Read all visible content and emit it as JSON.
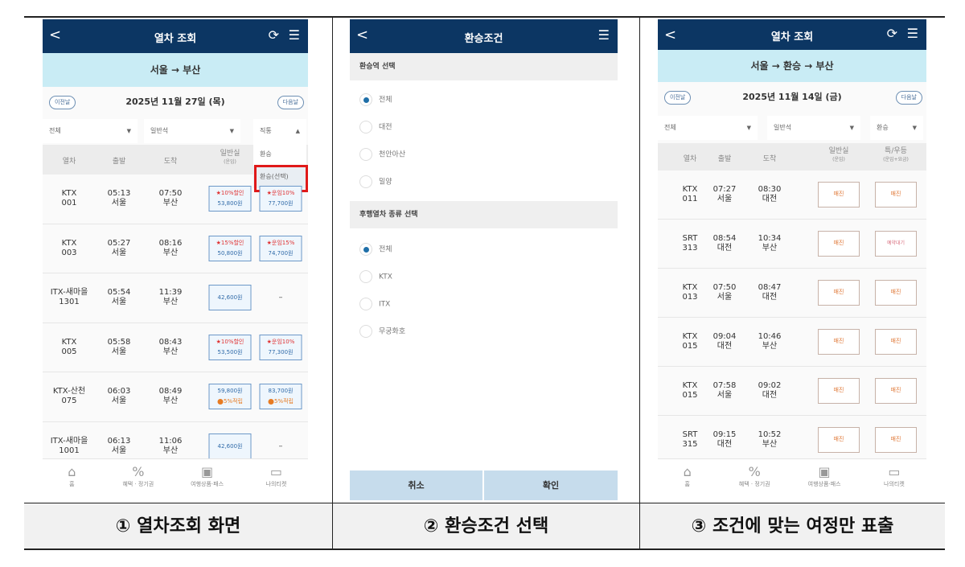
{
  "captions": [
    "① 열차조회 화면",
    "② 환승조건 선택",
    "③ 조건에 맞는 여정만 표출"
  ],
  "colors": {
    "header": "#0c3663",
    "route_bar": "#c9ecf5",
    "highlight": "#e01919",
    "sold_out": "#e07a3a"
  },
  "columns": {
    "train": "열차",
    "dep": "출발",
    "arr": "도착",
    "general": "일반실",
    "general_sub": "(운임)",
    "special": "특/우등",
    "special_sub": "(운임+요금)"
  },
  "nav": [
    {
      "label": "홈",
      "icon": "home-icon"
    },
    {
      "label": "혜택 · 정기권",
      "icon": "discount-icon"
    },
    {
      "label": "여행상품·패스",
      "icon": "luggage-icon"
    },
    {
      "label": "나의티켓",
      "icon": "ticket-icon"
    }
  ],
  "screen1": {
    "title": "열차 조회",
    "route": "서울 → 부산",
    "prev": "이전날",
    "next": "다음날",
    "date": "2025년 11월 27일 (목)",
    "filters": [
      "전체",
      "일반석",
      "직통"
    ],
    "dropdown": [
      "환승",
      "환승(선택)"
    ],
    "rows": [
      {
        "train": "KTX",
        "no": "001",
        "dep": "05:13",
        "dep_st": "서울",
        "arr": "07:50",
        "arr_st": "부산",
        "g": {
          "disc": "★10%할인",
          "price": "53,800원"
        },
        "s": {
          "disc": "★운임10%",
          "price": "77,700원"
        }
      },
      {
        "train": "KTX",
        "no": "003",
        "dep": "05:27",
        "dep_st": "서울",
        "arr": "08:16",
        "arr_st": "부산",
        "g": {
          "disc": "★15%할인",
          "price": "50,800원"
        },
        "s": {
          "disc": "★운임15%",
          "price": "74,700원"
        }
      },
      {
        "train": "ITX-새마을",
        "no": "1301",
        "dep": "05:54",
        "dep_st": "서울",
        "arr": "11:39",
        "arr_st": "부산",
        "g": {
          "price": "42,600원"
        },
        "s": null,
        "none": "–"
      },
      {
        "train": "KTX",
        "no": "005",
        "dep": "05:58",
        "dep_st": "서울",
        "arr": "08:43",
        "arr_st": "부산",
        "g": {
          "disc": "★10%할인",
          "price": "53,500원"
        },
        "s": {
          "disc": "★운임10%",
          "price": "77,300원"
        }
      },
      {
        "train": "KTX-산천",
        "no": "075",
        "dep": "06:03",
        "dep_st": "서울",
        "arr": "08:49",
        "arr_st": "부산",
        "g": {
          "price": "59,800원",
          "point": "5%적립"
        },
        "s": {
          "price": "83,700원",
          "point": "5%적립"
        }
      },
      {
        "train": "ITX-새마을",
        "no": "1001",
        "dep": "06:13",
        "dep_st": "서울",
        "arr": "11:06",
        "arr_st": "부산",
        "g": {
          "price": "42,600원"
        },
        "s": null,
        "none": "–"
      }
    ]
  },
  "screen2": {
    "title": "환승조건",
    "section1": "환승역 선택",
    "stations": [
      {
        "label": "전체",
        "checked": true
      },
      {
        "label": "대전",
        "checked": false
      },
      {
        "label": "천안아산",
        "checked": false
      },
      {
        "label": "밀양",
        "checked": false
      }
    ],
    "section2": "후행열차 종류 선택",
    "types": [
      {
        "label": "전체",
        "checked": true
      },
      {
        "label": "KTX",
        "checked": false
      },
      {
        "label": "ITX",
        "checked": false
      },
      {
        "label": "무궁화호",
        "checked": false
      }
    ],
    "cancel": "취소",
    "confirm": "확인"
  },
  "screen3": {
    "title": "열차 조회",
    "route": "서울 → 환승 → 부산",
    "prev": "이전날",
    "next": "다음날",
    "date": "2025년 11월 14일 (금)",
    "filters": [
      "전체",
      "일반석",
      "환승"
    ],
    "rows": [
      {
        "train": "KTX",
        "no": "011",
        "dep": "07:27",
        "dep_st": "서울",
        "arr": "08:30",
        "arr_st": "대전",
        "g": "매진",
        "s": "매진"
      },
      {
        "train": "SRT",
        "no": "313",
        "dep": "08:54",
        "dep_st": "대전",
        "arr": "10:34",
        "arr_st": "부산",
        "g": "매진",
        "s": "예약대기"
      },
      {
        "train": "KTX",
        "no": "013",
        "dep": "07:50",
        "dep_st": "서울",
        "arr": "08:47",
        "arr_st": "대전",
        "g": "매진",
        "s": "매진"
      },
      {
        "train": "KTX",
        "no": "015",
        "dep": "09:04",
        "dep_st": "대전",
        "arr": "10:46",
        "arr_st": "부산",
        "g": "매진",
        "s": "매진"
      },
      {
        "train": "KTX",
        "no": "015",
        "dep": "07:58",
        "dep_st": "서울",
        "arr": "09:02",
        "arr_st": "대전",
        "g": "매진",
        "s": "매진"
      },
      {
        "train": "SRT",
        "no": "315",
        "dep": "09:15",
        "dep_st": "대전",
        "arr": "10:52",
        "arr_st": "부산",
        "g": "매진",
        "s": "매진"
      }
    ]
  }
}
